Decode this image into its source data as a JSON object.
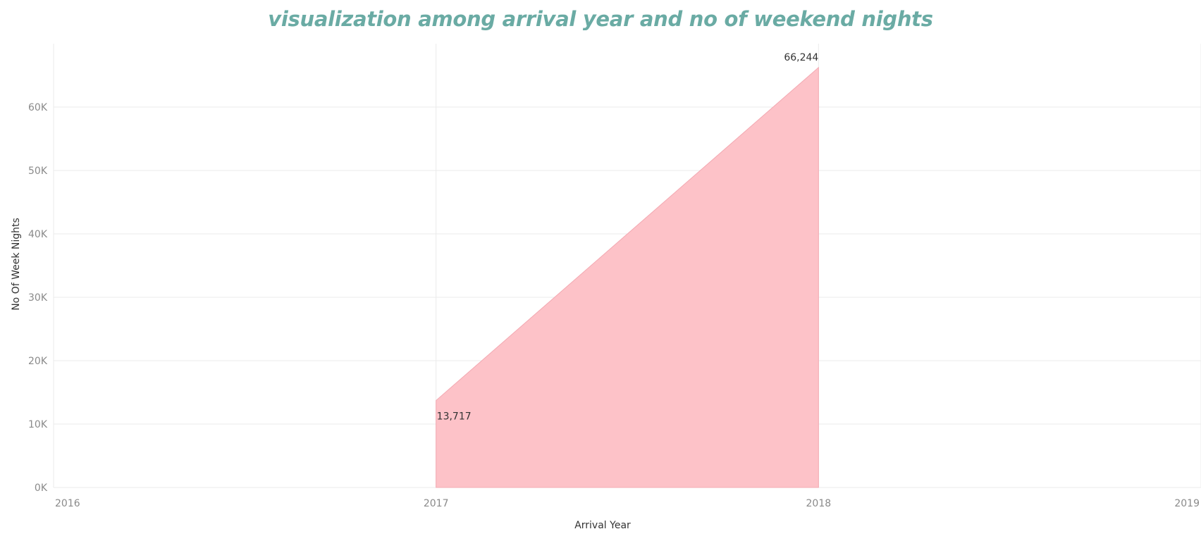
{
  "colors": {
    "title": "#6aaba4",
    "area_fill": "#fdc2c8",
    "area_stroke": "#f3a9b2",
    "grid": "#ebebeb",
    "tick_text": "#8a8a8a",
    "axis_label_text": "#333333",
    "data_label_text": "#333333"
  },
  "chart_data": {
    "type": "area",
    "title": "visualization among arrival year and no of weekend nights",
    "xlabel": "Arrival Year",
    "ylabel": "No Of Week Nights",
    "x_ticks": [
      "2016",
      "2017",
      "2018",
      "2019"
    ],
    "x_domain": [
      2016,
      2019
    ],
    "y_ticks": [
      "0K",
      "10K",
      "20K",
      "30K",
      "40K",
      "50K",
      "60K"
    ],
    "y_tick_values": [
      0,
      10000,
      20000,
      30000,
      40000,
      50000,
      60000
    ],
    "ylim": [
      0,
      70000
    ],
    "grid": true,
    "series": [
      {
        "x": [
          2017,
          2018
        ],
        "values": [
          13717,
          66244
        ],
        "data_labels": [
          "13,717",
          "66,244"
        ]
      }
    ]
  }
}
